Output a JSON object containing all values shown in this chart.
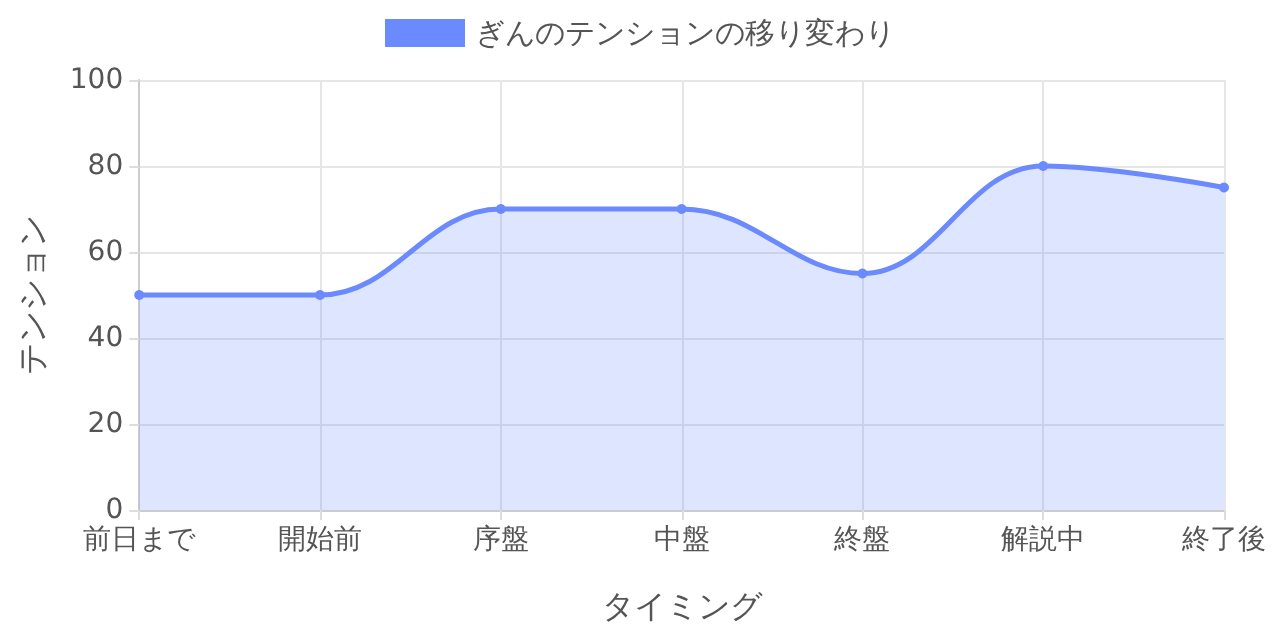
{
  "chart_data": {
    "type": "area",
    "xlabel": "タイミング",
    "ylabel": "テンション",
    "categories": [
      "前日まで",
      "開始前",
      "序盤",
      "中盤",
      "終盤",
      "解説中",
      "終了後"
    ],
    "series": [
      {
        "name": "ぎんのテンションの移り変わり",
        "color": "#6b8afd",
        "values": [
          50,
          50,
          70,
          70,
          55,
          80,
          75
        ]
      }
    ],
    "ylim": [
      0,
      100
    ],
    "yticks": [
      0,
      20,
      40,
      60,
      80,
      100
    ],
    "grid": true,
    "legend": "top",
    "marker": "circle",
    "line_style": "solid"
  }
}
